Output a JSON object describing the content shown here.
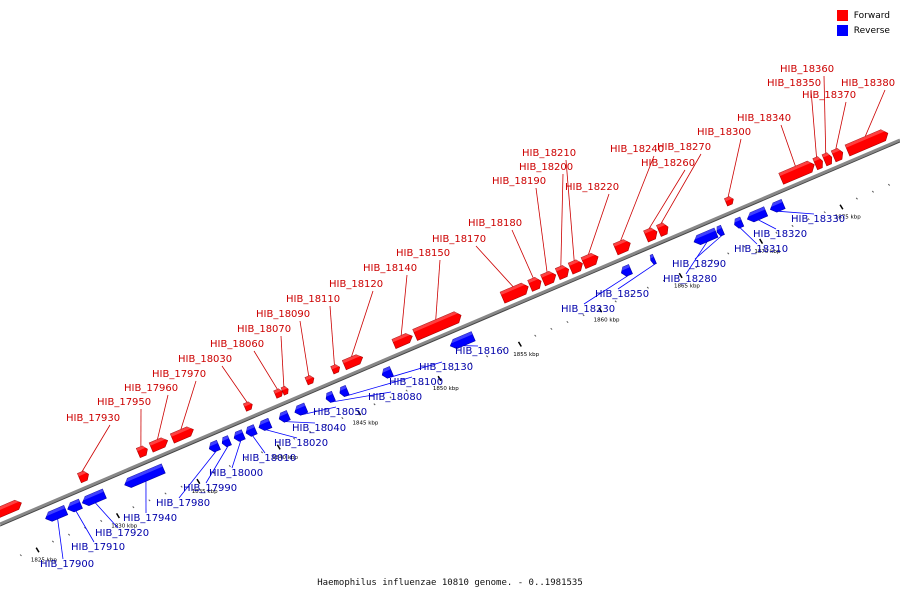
{
  "caption": "Haemophilus influenzae 10810 genome. - 0..1981535",
  "legend": [
    {
      "label": "Forward",
      "color": "#ff0000"
    },
    {
      "label": "Reverse",
      "color": "#0000ff"
    }
  ],
  "colors": {
    "forward": "#ff0000",
    "forward_dark": "#aa0000",
    "reverse": "#0000ff",
    "reverse_dark": "#0000aa",
    "backbone": "#888888",
    "forward_label": "#cc0000",
    "reverse_label": "#0000aa"
  },
  "ticks": [
    "1825 kbp",
    "1830 kbp",
    "1835 kbp",
    "1840 kbp",
    "1845 kbp",
    "1850 kbp",
    "1855 kbp",
    "1860 kbp",
    "1865 kbp",
    "1870 kbp",
    "1875 kbp"
  ],
  "genes": [
    {
      "name": "",
      "strand": "forward"
    },
    {
      "name": "HIB_17930",
      "strand": "forward"
    },
    {
      "name": "HIB_17950",
      "strand": "forward"
    },
    {
      "name": "HIB_17960",
      "strand": "forward"
    },
    {
      "name": "HIB_17970",
      "strand": "forward"
    },
    {
      "name": "HIB_18030",
      "strand": "forward"
    },
    {
      "name": "HIB_18060",
      "strand": "forward"
    },
    {
      "name": "HIB_18070",
      "strand": "forward"
    },
    {
      "name": "HIB_18090",
      "strand": "forward"
    },
    {
      "name": "HIB_18110",
      "strand": "forward"
    },
    {
      "name": "HIB_18120",
      "strand": "forward"
    },
    {
      "name": "HIB_18140",
      "strand": "forward"
    },
    {
      "name": "HIB_18150",
      "strand": "forward"
    },
    {
      "name": "HIB_18170",
      "strand": "forward"
    },
    {
      "name": "HIB_18180",
      "strand": "forward"
    },
    {
      "name": "HIB_18190",
      "strand": "forward"
    },
    {
      "name": "HIB_18200",
      "strand": "forward"
    },
    {
      "name": "HIB_18210",
      "strand": "forward"
    },
    {
      "name": "HIB_18220",
      "strand": "forward"
    },
    {
      "name": "HIB_18240",
      "strand": "forward"
    },
    {
      "name": "HIB_18260",
      "strand": "forward"
    },
    {
      "name": "HIB_18270",
      "strand": "forward"
    },
    {
      "name": "HIB_18300",
      "strand": "forward"
    },
    {
      "name": "HIB_18340",
      "strand": "forward"
    },
    {
      "name": "HIB_18350",
      "strand": "forward"
    },
    {
      "name": "HIB_18360",
      "strand": "forward"
    },
    {
      "name": "HIB_18370",
      "strand": "forward"
    },
    {
      "name": "HIB_18380",
      "strand": "forward"
    },
    {
      "name": "HIB_17900",
      "strand": "reverse"
    },
    {
      "name": "HIB_17910",
      "strand": "reverse"
    },
    {
      "name": "HIB_17920",
      "strand": "reverse"
    },
    {
      "name": "HIB_17940",
      "strand": "reverse"
    },
    {
      "name": "HIB_17980",
      "strand": "reverse"
    },
    {
      "name": "HIB_17990",
      "strand": "reverse"
    },
    {
      "name": "HIB_18000",
      "strand": "reverse"
    },
    {
      "name": "HIB_18010",
      "strand": "reverse"
    },
    {
      "name": "HIB_18020",
      "strand": "reverse"
    },
    {
      "name": "HIB_18040",
      "strand": "reverse"
    },
    {
      "name": "HIB_18050",
      "strand": "reverse"
    },
    {
      "name": "HIB_18080",
      "strand": "reverse"
    },
    {
      "name": "HIB_18100",
      "strand": "reverse"
    },
    {
      "name": "HIB_18130",
      "strand": "reverse"
    },
    {
      "name": "HIB_18160",
      "strand": "reverse"
    },
    {
      "name": "HIB_18230",
      "strand": "reverse"
    },
    {
      "name": "HIB_18250",
      "strand": "reverse"
    },
    {
      "name": "HIB_18280",
      "strand": "reverse"
    },
    {
      "name": "HIB_18290",
      "strand": "reverse"
    },
    {
      "name": "HIB_18310",
      "strand": "reverse"
    },
    {
      "name": "HIB_18320",
      "strand": "reverse"
    },
    {
      "name": "HIB_18330",
      "strand": "reverse"
    },
    {
      "name": "",
      "strand": "reverse"
    }
  ]
}
